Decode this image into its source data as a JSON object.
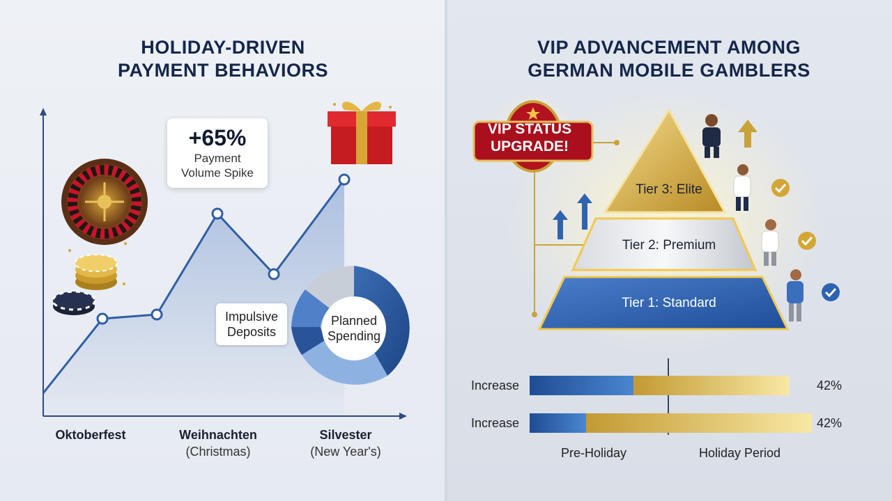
{
  "left": {
    "title_line1": "HOLIDAY-DRIVEN",
    "title_line2": "PAYMENT BEHAVIORS",
    "callout": {
      "value": "+65%",
      "line1": "Payment",
      "line2": "Volume Spike"
    },
    "donut_labels": {
      "impulsive_line1": "Impulsive",
      "impulsive_line2": "Deposits",
      "planned_line1": "Planned",
      "planned_line2": "Spending"
    },
    "x_labels": [
      {
        "main": "Oktoberfest",
        "sub": ""
      },
      {
        "main": "Weihnachten",
        "sub": "(Christmas)"
      },
      {
        "main": "Silvester",
        "sub": "(New Year's)"
      }
    ]
  },
  "right": {
    "title_line1": "VIP ADVANCEMENT AMONG",
    "title_line2": "GERMAN MOBILE GAMBLERS",
    "badge_line1": "VIP STATUS",
    "badge_line2": "UPGRADE!",
    "tiers": [
      {
        "label": "Tier 3: Elite"
      },
      {
        "label": "Tier 2: Premium"
      },
      {
        "label": "Tier 1: Standard"
      }
    ],
    "bars": [
      {
        "label": "Increase",
        "pct": "42%",
        "pre": 0.4,
        "holiday": 0.6
      },
      {
        "label": "Increase",
        "pct": "42%",
        "pre": 0.2,
        "holiday": 0.8
      }
    ],
    "legend": {
      "pre": "Pre-Holiday",
      "holiday": "Holiday Period"
    }
  },
  "colors": {
    "navy": "#14264a",
    "blue": "#2b5da6",
    "gold": "#c9a23a",
    "red": "#b3121f"
  },
  "icons": [
    "roulette-wheel-icon",
    "poker-chips-icon",
    "gift-box-icon",
    "person-icon",
    "checkmark-icon",
    "up-arrow-icon"
  ]
}
